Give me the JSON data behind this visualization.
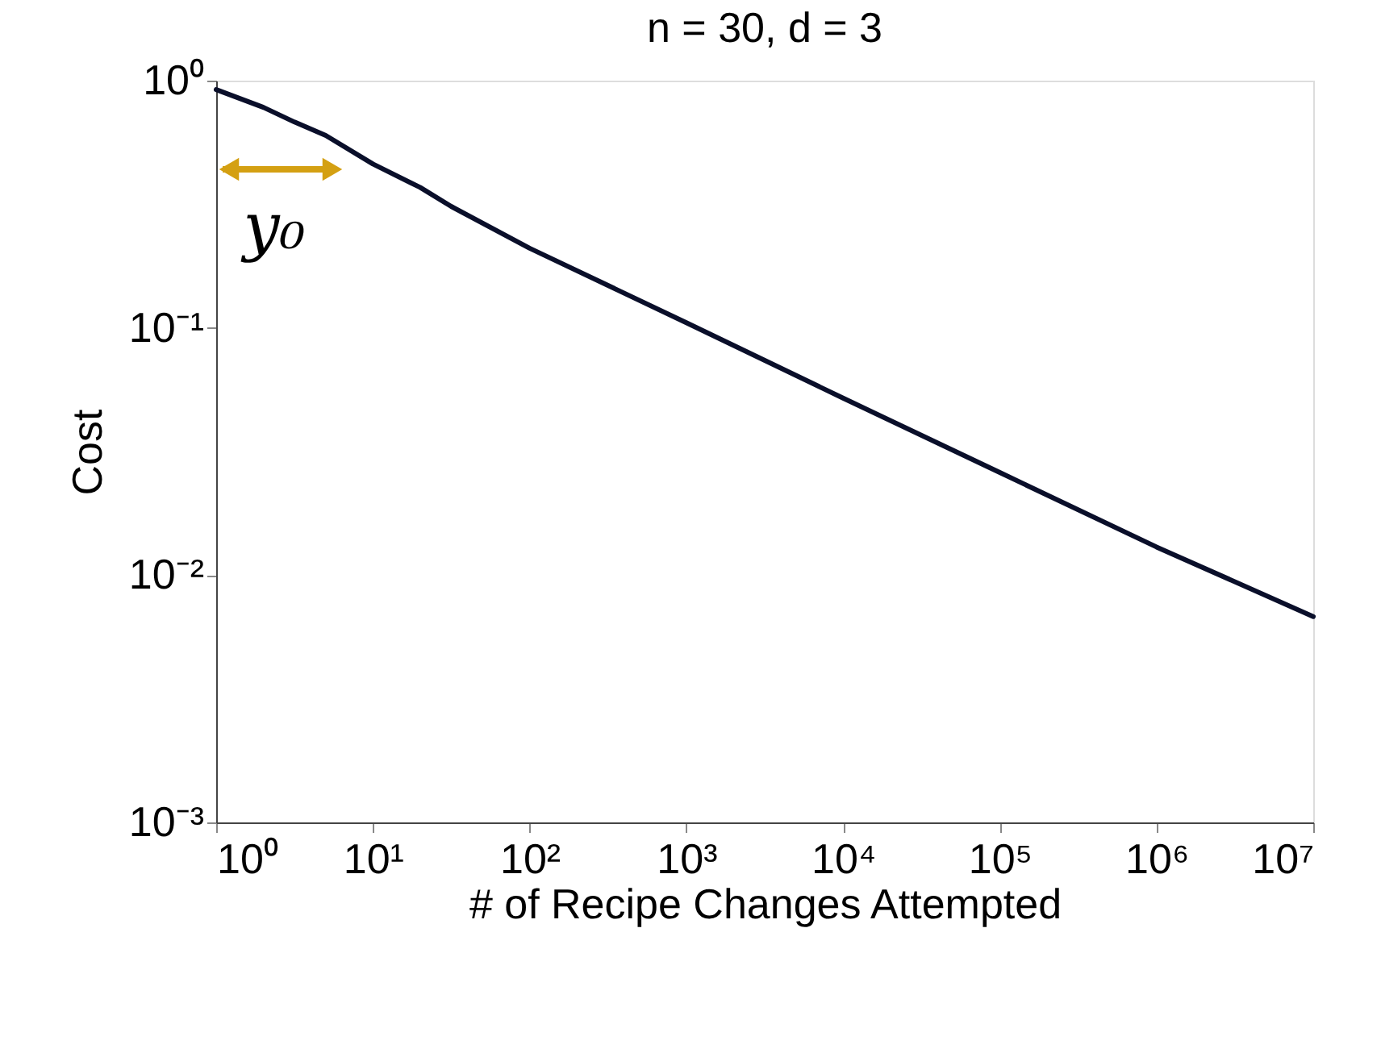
{
  "chart_data": {
    "type": "line",
    "title": "n = 30, d = 3",
    "xlabel": "# of Recipe Changes Attempted",
    "ylabel": "Cost",
    "x": [
      1,
      2,
      3.16,
      5,
      10,
      20,
      31.6,
      100,
      1000,
      10000,
      100000,
      1000000,
      10000000
    ],
    "series": [
      {
        "color": "#0a0f2a",
        "values": [
          0.92,
          0.78,
          0.68,
          0.6,
          0.46,
          0.37,
          0.31,
          0.21,
          0.105,
          0.052,
          0.026,
          0.013,
          0.0068
        ]
      }
    ],
    "log": "xy",
    "xlim": [
      1,
      10000000
    ],
    "ylim": [
      0.001,
      1
    ],
    "xticks": [
      {
        "value": 1,
        "label": "10⁰"
      },
      {
        "value": 10,
        "label": "10¹"
      },
      {
        "value": 100,
        "label": "10²"
      },
      {
        "value": 1000,
        "label": "10³"
      },
      {
        "value": 10000,
        "label": "10⁴"
      },
      {
        "value": 100000,
        "label": "10⁵"
      },
      {
        "value": 1000000,
        "label": "10⁶"
      },
      {
        "value": 10000000,
        "label": "10⁷"
      }
    ],
    "yticks": [
      {
        "value": 0.001,
        "label": "10⁻³"
      },
      {
        "value": 0.01,
        "label": "10⁻²"
      },
      {
        "value": 0.1,
        "label": "10⁻¹"
      },
      {
        "value": 1,
        "label": "10⁰"
      }
    ],
    "grid": false,
    "marker": "none",
    "line_style": "solid",
    "annotations": [
      "y₀"
    ]
  }
}
